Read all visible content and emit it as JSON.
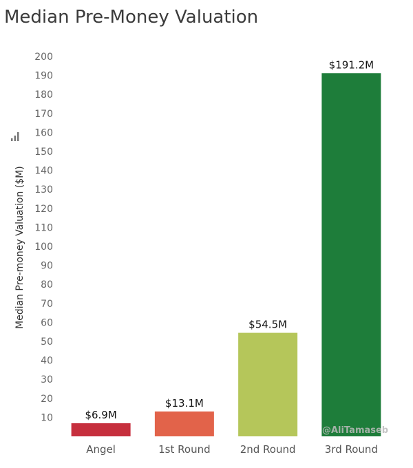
{
  "chart_data": {
    "type": "bar",
    "title": "Median Pre-Money Valuation",
    "ylabel": "Median Pre-money Valuation ($M)",
    "xlabel": "",
    "ylim": [
      0,
      200
    ],
    "yticks": [
      10,
      20,
      30,
      40,
      50,
      60,
      70,
      80,
      90,
      100,
      110,
      120,
      130,
      140,
      150,
      160,
      170,
      180,
      190,
      200
    ],
    "grid": false,
    "categories": [
      "Angel",
      "1st Round",
      "2nd Round",
      "3rd Round"
    ],
    "values": [
      6.9,
      13.1,
      54.5,
      191.2
    ],
    "data_labels": [
      "$6.9M",
      "$13.1M",
      "$54.5M",
      "$191.2M"
    ],
    "colors": [
      "#c62f3d",
      "#e2634a",
      "#b5c65a",
      "#1e7d3a"
    ],
    "ylabel_icon": "bar-chart-icon"
  },
  "watermark": "@AliTamaseb"
}
